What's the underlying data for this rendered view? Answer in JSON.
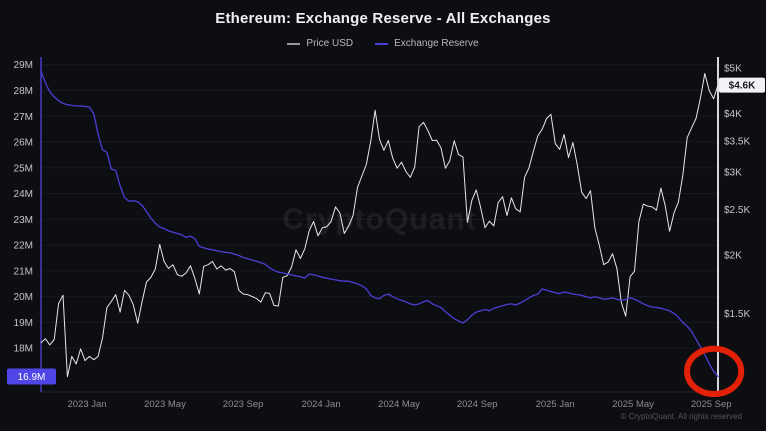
{
  "page": {
    "title": "Ethereum: Exchange Reserve - All Exchanges",
    "watermark": "CryptoQuant",
    "copyright": "© CryptoQuant. All rights reserved"
  },
  "legend": {
    "items": [
      {
        "label": "Price USD",
        "color": "#97999f"
      },
      {
        "label": "Exchange Reserve",
        "color": "#4a3fd6"
      }
    ]
  },
  "colors": {
    "background": "#0d0e12",
    "price_line": "#e7e7ea",
    "reserve_line": "#4a3fd6",
    "left_axis_line": "#4338b8",
    "right_axis_line": "#eef0f2",
    "grid": "rgba(160,170,200,0.08)",
    "y_tick_text": "#c3c5cb",
    "x_tick_text": "#8b8d94",
    "reserve_badge_bg": "#4f46e5",
    "reserve_badge_text": "#ffffff",
    "price_badge_bg": "#f2f3f6",
    "price_badge_text": "#17181c",
    "annotation": "#e32109"
  },
  "chart_data": {
    "type": "line",
    "title": "Ethereum: Exchange Reserve - All Exchanges",
    "x_unit": "months from mid-Oct 2022 to mid-Sep 2025",
    "x_domain": [
      0,
      35
    ],
    "x_ticks": [
      {
        "label": "2023 Jan",
        "m": 2.38
      },
      {
        "label": "2023 May",
        "m": 6.41
      },
      {
        "label": "2023 Sep",
        "m": 10.45
      },
      {
        "label": "2024 Jan",
        "m": 14.48
      },
      {
        "label": "2024 May",
        "m": 18.51
      },
      {
        "label": "2024 Sep",
        "m": 22.55
      },
      {
        "label": "2025 Jan",
        "m": 26.58
      },
      {
        "label": "2025 May",
        "m": 30.61
      },
      {
        "label": "2025 Sep",
        "m": 34.65
      }
    ],
    "left_axis": {
      "name": "Exchange Reserve (ETH)",
      "scale": "linear",
      "range": [
        16.3,
        29.3
      ],
      "ticks": [
        {
          "label": "29M",
          "value": 29
        },
        {
          "label": "28M",
          "value": 28
        },
        {
          "label": "27M",
          "value": 27
        },
        {
          "label": "26M",
          "value": 26
        },
        {
          "label": "25M",
          "value": 25
        },
        {
          "label": "24M",
          "value": 24
        },
        {
          "label": "23M",
          "value": 23
        },
        {
          "label": "22M",
          "value": 22
        },
        {
          "label": "21M",
          "value": 21
        },
        {
          "label": "20M",
          "value": 20
        },
        {
          "label": "19M",
          "value": 19
        },
        {
          "label": "18M",
          "value": 18
        }
      ],
      "current": {
        "label": "16.9M",
        "value": 16.9
      }
    },
    "right_axis": {
      "name": "Price USD",
      "scale": "log",
      "range": [
        1020,
        5280
      ],
      "ticks": [
        {
          "label": "$5K",
          "value": 5000
        },
        {
          "label": "$4K",
          "value": 4000
        },
        {
          "label": "$3.5K",
          "value": 3500
        },
        {
          "label": "$3K",
          "value": 3000
        },
        {
          "label": "$2.5K",
          "value": 2500
        },
        {
          "label": "$2K",
          "value": 2000
        },
        {
          "label": "$1.5K",
          "value": 1500
        }
      ],
      "current": {
        "label": "$4.6K",
        "value": 4600
      }
    },
    "series": [
      {
        "name": "Price USD",
        "axis": "right",
        "values": [
          1300,
          1325,
          1285,
          1320,
          1575,
          1640,
          1100,
          1215,
          1170,
          1260,
          1190,
          1215,
          1195,
          1215,
          1330,
          1545,
          1590,
          1645,
          1510,
          1680,
          1640,
          1565,
          1430,
          1590,
          1750,
          1790,
          1865,
          2105,
          1935,
          1870,
          1905,
          1815,
          1800,
          1830,
          1895,
          1780,
          1650,
          1890,
          1905,
          1935,
          1865,
          1895,
          1855,
          1870,
          1840,
          1680,
          1650,
          1645,
          1630,
          1615,
          1585,
          1660,
          1655,
          1560,
          1555,
          1790,
          1805,
          1885,
          2050,
          1965,
          2060,
          2250,
          2355,
          2195,
          2285,
          2295,
          2355,
          2530,
          2455,
          2220,
          2305,
          2425,
          2785,
          2945,
          3115,
          3485,
          4065,
          3525,
          3340,
          3505,
          3215,
          3060,
          3150,
          3010,
          2925,
          3075,
          3750,
          3830,
          3680,
          3505,
          3510,
          3380,
          3060,
          3175,
          3500,
          3270,
          3230,
          2345,
          2610,
          2750,
          2525,
          2285,
          2360,
          2305,
          2585,
          2660,
          2425,
          2645,
          2505,
          2470,
          2925,
          3065,
          3325,
          3585,
          3705,
          3905,
          3985,
          3450,
          3355,
          3610,
          3225,
          3470,
          3105,
          2720,
          2635,
          2740,
          2280,
          2095,
          1905,
          1930,
          2010,
          1870,
          1585,
          1480,
          1795,
          1845,
          2355,
          2565,
          2540,
          2530,
          2490,
          2775,
          2545,
          2245,
          2455,
          2590,
          2955,
          3555,
          3730,
          3905,
          4310,
          4870,
          4480,
          4300,
          4605
        ]
      },
      {
        "name": "Exchange Reserve",
        "axis": "left",
        "values": [
          28.75,
          28.3,
          27.95,
          27.75,
          27.6,
          27.5,
          27.45,
          27.42,
          27.4,
          27.4,
          27.38,
          27.35,
          27.1,
          26.3,
          25.7,
          25.6,
          24.95,
          24.9,
          24.3,
          23.85,
          23.7,
          23.72,
          23.68,
          23.55,
          23.3,
          23.05,
          22.85,
          22.7,
          22.65,
          22.55,
          22.5,
          22.45,
          22.4,
          22.3,
          22.35,
          22.25,
          21.95,
          21.9,
          21.85,
          21.82,
          21.78,
          21.75,
          21.72,
          21.7,
          21.65,
          21.6,
          21.52,
          21.48,
          21.42,
          21.38,
          21.32,
          21.25,
          21.12,
          21.02,
          20.95,
          20.92,
          20.88,
          20.85,
          20.8,
          20.78,
          20.72,
          20.88,
          20.85,
          20.8,
          20.75,
          20.72,
          20.68,
          20.65,
          20.62,
          20.6,
          20.6,
          20.55,
          20.5,
          20.42,
          20.3,
          20.05,
          19.95,
          19.92,
          20.05,
          20.1,
          20.0,
          19.92,
          19.85,
          19.8,
          19.72,
          19.68,
          19.72,
          19.8,
          19.85,
          19.72,
          19.65,
          19.58,
          19.42,
          19.28,
          19.15,
          19.05,
          18.98,
          19.1,
          19.28,
          19.4,
          19.45,
          19.5,
          19.45,
          19.55,
          19.6,
          19.65,
          19.7,
          19.72,
          19.68,
          19.75,
          19.85,
          19.95,
          20.05,
          20.1,
          20.3,
          20.25,
          20.2,
          20.15,
          20.12,
          20.18,
          20.15,
          20.1,
          20.08,
          20.05,
          20.0,
          19.95,
          20.0,
          19.95,
          19.9,
          19.92,
          19.95,
          19.9,
          19.85,
          19.9,
          19.95,
          19.9,
          19.82,
          19.72,
          19.65,
          19.6,
          19.58,
          19.55,
          19.5,
          19.45,
          19.35,
          19.2,
          19.0,
          18.85,
          18.65,
          18.35,
          18.05,
          17.75,
          17.4,
          17.1,
          16.9
        ]
      }
    ],
    "annotation": {
      "shape": "ellipse",
      "note": "highlights exchange reserve falling to 16.9M",
      "center": {
        "month": 34.8,
        "reserve": 17.1
      },
      "radius": {
        "months": 1.4,
        "reserve": 0.88
      }
    }
  }
}
